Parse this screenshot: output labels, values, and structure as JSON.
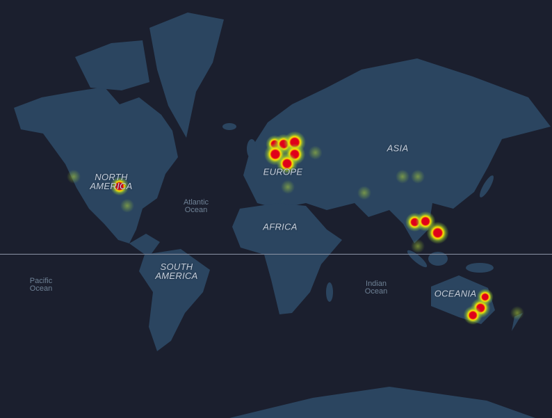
{
  "map": {
    "colors": {
      "water": "#1b1f2e",
      "land": "#2b4560",
      "heat_low": "#9acd32",
      "heat_mid": "#ffe600",
      "heat_high": "#e0001a"
    },
    "continent_labels": [
      "NORTH\nAMERICA",
      "SOUTH\nAMERICA",
      "EUROPE",
      "AFRICA",
      "ASIA",
      "OCEANIA"
    ],
    "ocean_labels": [
      "Atlantic\nOcean",
      "Pacific\nOcean",
      "Indian\nOcean"
    ],
    "heat_points": [
      {
        "lon": 1.4,
        "lat": 58.1,
        "intensity": 0.6
      },
      {
        "lon": 7.3,
        "lat": 58.1,
        "intensity": 0.8
      },
      {
        "lon": 14.5,
        "lat": 58.7,
        "intensity": 1.0
      },
      {
        "lon": 1.8,
        "lat": 54.4,
        "intensity": 1.0
      },
      {
        "lon": 14.5,
        "lat": 54.4,
        "intensity": 0.9
      },
      {
        "lon": 9.5,
        "lat": 50.7,
        "intensity": 0.9
      },
      {
        "lon": -100,
        "lat": 40.4,
        "intensity": 0.7
      },
      {
        "lon": 93,
        "lat": 20.3,
        "intensity": 0.7
      },
      {
        "lon": 100,
        "lat": 20.8,
        "intensity": 0.8
      },
      {
        "lon": 108,
        "lat": 13.6,
        "intensity": 1.0
      },
      {
        "lon": 136,
        "lat": -33.3,
        "intensity": 0.8
      },
      {
        "lon": 131,
        "lat": -37.2,
        "intensity": 0.7
      },
      {
        "lon": 139,
        "lat": -27.1,
        "intensity": 0.5
      },
      {
        "lon": -130,
        "lat": 45,
        "intensity": 0.2
      },
      {
        "lon": -95,
        "lat": 30,
        "intensity": 0.25
      },
      {
        "lon": 28,
        "lat": 55,
        "intensity": 0.2
      },
      {
        "lon": 85,
        "lat": 45,
        "intensity": 0.2
      },
      {
        "lon": 95,
        "lat": 45,
        "intensity": 0.15
      },
      {
        "lon": 60,
        "lat": 37,
        "intensity": 0.15
      },
      {
        "lon": 160,
        "lat": -36,
        "intensity": 0.2
      },
      {
        "lon": 10,
        "lat": 40,
        "intensity": 0.15
      },
      {
        "lon": 95,
        "lat": 5,
        "intensity": 0.2
      }
    ]
  }
}
